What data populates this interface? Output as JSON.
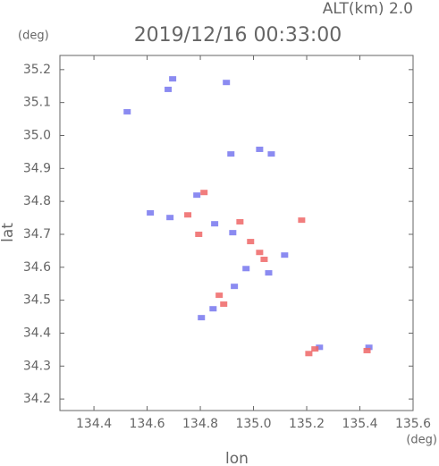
{
  "chart_data": {
    "type": "scatter",
    "title": "2019/12/16 00:33:00",
    "subtitle": "ALT(km) 2.0",
    "y_unit": "(deg)",
    "x_unit": "(deg)",
    "xlabel": "lon",
    "ylabel": "lat",
    "xlim": [
      134.272,
      135.6
    ],
    "ylim": [
      34.165,
      35.243
    ],
    "xticks": [
      134.4,
      134.6,
      134.8,
      {
        "value": 135,
        "label": "135.0"
      },
      135.2,
      135.4,
      135.6
    ],
    "yticks": [
      34.2,
      34.3,
      34.4,
      34.5,
      34.6,
      34.7,
      34.8,
      34.9,
      {
        "value": 35,
        "label": "35.0"
      },
      35.1,
      35.2
    ],
    "series": [
      {
        "color": "#7777ee",
        "x": [
          134.525,
          134.679,
          134.696,
          134.686,
          134.612,
          134.787,
          134.854,
          134.922,
          134.972,
          135.057,
          135.117,
          134.848,
          134.804,
          134.928,
          134.915,
          135.067,
          135.023,
          134.898,
          135.248,
          135.434
        ],
        "y": [
          35.072,
          35.14,
          35.172,
          34.751,
          34.765,
          34.819,
          34.732,
          34.705,
          34.596,
          34.583,
          34.637,
          34.474,
          34.447,
          34.542,
          34.944,
          34.944,
          34.958,
          35.161,
          34.357,
          34.357
        ]
      },
      {
        "color": "#ee6666",
        "x": [
          134.814,
          134.794,
          134.949,
          134.989,
          135.04,
          134.871,
          134.888,
          135.208,
          135.231,
          135.427,
          135.181,
          134.753,
          135.023
        ],
        "y": [
          34.827,
          34.7,
          34.738,
          34.678,
          34.624,
          34.515,
          34.488,
          34.338,
          34.352,
          34.347,
          34.743,
          34.759,
          34.645
        ]
      }
    ]
  }
}
